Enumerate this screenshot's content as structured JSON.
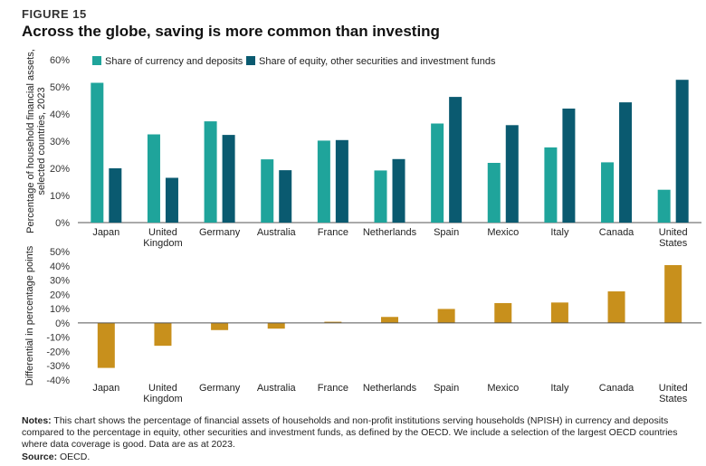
{
  "header": {
    "figure_label": "FIGURE 15",
    "title": "Across the globe, saving is more common than investing"
  },
  "colors": {
    "currency": "#1fa49b",
    "equity": "#0a5a70",
    "differential": "#c8901c",
    "axis": "#555555"
  },
  "chart_data": [
    {
      "type": "bar",
      "ylabel": "Percentage of household financial assets, selected countries, 2023",
      "ylim": [
        0,
        60
      ],
      "yticks": [
        "0%",
        "10%",
        "20%",
        "30%",
        "40%",
        "50%",
        "60%"
      ],
      "categories": [
        "Japan",
        "United Kingdom",
        "Germany",
        "Australia",
        "France",
        "Netherlands",
        "Spain",
        "Mexico",
        "Italy",
        "Canada",
        "United States"
      ],
      "category_lines": [
        [
          "Japan"
        ],
        [
          "United",
          "Kingdom"
        ],
        [
          "Germany"
        ],
        [
          "Australia"
        ],
        [
          "France"
        ],
        [
          "Netherlands"
        ],
        [
          "Spain"
        ],
        [
          "Mexico"
        ],
        [
          "Italy"
        ],
        [
          "Canada"
        ],
        [
          "United",
          "States"
        ]
      ],
      "legend_position": "top-left",
      "series": [
        {
          "name": "Share of currency and deposits",
          "values": [
            51.5,
            32.5,
            37.3,
            23.3,
            30.2,
            19.2,
            36.5,
            22.0,
            27.7,
            22.2,
            12.1
          ]
        },
        {
          "name": "Share of equity, other securities and investment funds",
          "values": [
            20.0,
            16.5,
            32.3,
            19.3,
            30.4,
            23.4,
            46.3,
            35.9,
            42.0,
            44.3,
            52.6
          ]
        }
      ]
    },
    {
      "type": "bar",
      "ylabel": "Differential in percentage points",
      "ylim": [
        -40,
        50
      ],
      "yticks": [
        "-40%",
        "-30%",
        "-20%",
        "-10%",
        "0%",
        "10%",
        "20%",
        "30%",
        "40%",
        "50%"
      ],
      "categories": [
        "Japan",
        "United Kingdom",
        "Germany",
        "Australia",
        "France",
        "Netherlands",
        "Spain",
        "Mexico",
        "Italy",
        "Canada",
        "United States"
      ],
      "category_lines": [
        [
          "Japan"
        ],
        [
          "United",
          "Kingdom"
        ],
        [
          "Germany"
        ],
        [
          "Australia"
        ],
        [
          "France"
        ],
        [
          "Netherlands"
        ],
        [
          "Spain"
        ],
        [
          "Mexico"
        ],
        [
          "Italy"
        ],
        [
          "Canada"
        ],
        [
          "United",
          "States"
        ]
      ],
      "values": [
        -31.5,
        -16.0,
        -5.0,
        -4.0,
        0.2,
        4.2,
        9.8,
        13.9,
        14.3,
        22.1,
        40.5
      ]
    }
  ],
  "footer": {
    "notes_label": "Notes:",
    "notes_text": " This chart shows the percentage of financial assets of households and non-profit institutions serving households (NPISH) in currency and deposits compared to the percentage in equity, other securities and investment funds, as defined by the OECD. We include a selection of the largest OECD countries where data coverage is good. Data are as at 2023.",
    "source_label": "Source:",
    "source_text": " OECD."
  }
}
